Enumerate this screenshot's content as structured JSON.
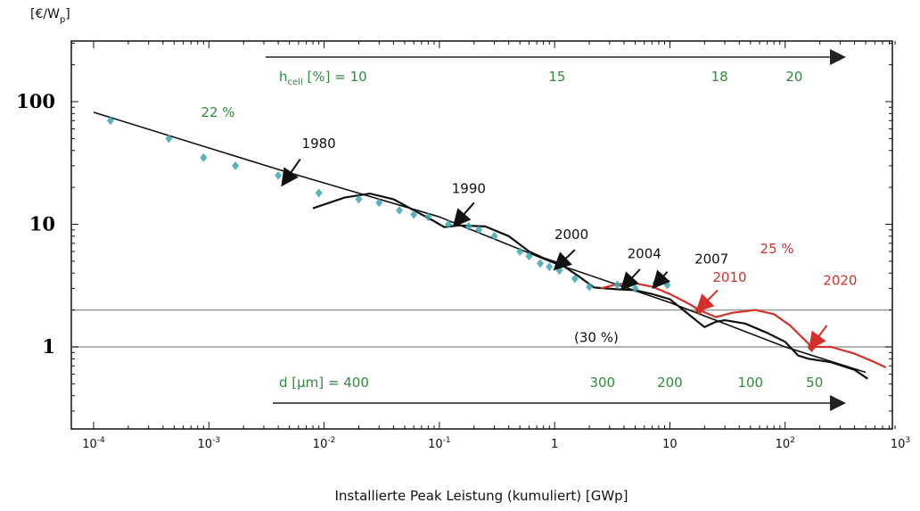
{
  "chart_data": {
    "type": "line",
    "ylabel_unit": "[€/W",
    "ylabel_unit_sub": "p",
    "ylabel_unit_close": "]",
    "xlabel": "Installierte Peak Leistung (kumuliert) [GWp]",
    "x_scale": "log",
    "y_scale": "log",
    "xlim": [
      5e-05,
      1000
    ],
    "ylim": [
      0.3,
      300
    ],
    "x_ticks": [
      {
        "value": 0.0001,
        "base": "10",
        "exp": "-4"
      },
      {
        "value": 0.001,
        "base": "10",
        "exp": "-3"
      },
      {
        "value": 0.01,
        "base": "10",
        "exp": "-2"
      },
      {
        "value": 0.1,
        "base": "10",
        "exp": "-1"
      },
      {
        "value": 1,
        "base": "1",
        "exp": ""
      },
      {
        "value": 10,
        "base": "10",
        "exp": ""
      },
      {
        "value": 100,
        "base": "10",
        "exp": "2"
      },
      {
        "value": 1000,
        "base": "10",
        "exp": "3"
      }
    ],
    "y_ticks": [
      {
        "value": 100,
        "label": "100"
      },
      {
        "value": 10,
        "label": "10"
      },
      {
        "value": 1,
        "label": "1"
      }
    ],
    "reference_lines_y": [
      2,
      1
    ],
    "colors": {
      "data": "#3fa6b0",
      "trend": "#111111",
      "forecast": "#d3302a",
      "green": "#2f8a3c"
    },
    "series": [
      {
        "id": "trend",
        "color": "#111111",
        "points": [
          [
            0.0001,
            82
          ],
          [
            0.004,
            28
          ],
          [
            0.1,
            11.5
          ],
          [
            1,
            4.8
          ],
          [
            10,
            2.3
          ],
          [
            100,
            1.0
          ],
          [
            500,
            0.62
          ]
        ]
      },
      {
        "id": "history",
        "color": "#111111",
        "points": [
          [
            0.008,
            13.5
          ],
          [
            0.015,
            16.5
          ],
          [
            0.025,
            17.8
          ],
          [
            0.04,
            16
          ],
          [
            0.06,
            13
          ],
          [
            0.09,
            10.6
          ],
          [
            0.11,
            9.5
          ],
          [
            0.15,
            9.8
          ],
          [
            0.25,
            9.6
          ],
          [
            0.4,
            8.0
          ],
          [
            0.6,
            6.0
          ],
          [
            0.8,
            5.3
          ],
          [
            1.1,
            4.8
          ],
          [
            1.6,
            3.8
          ],
          [
            2.2,
            3.05
          ],
          [
            3.5,
            2.95
          ],
          [
            5,
            2.9
          ],
          [
            7,
            2.7
          ],
          [
            10,
            2.45
          ],
          [
            15,
            1.8
          ],
          [
            20,
            1.45
          ],
          [
            25,
            1.6
          ],
          [
            30,
            1.65
          ],
          [
            45,
            1.55
          ],
          [
            70,
            1.3
          ],
          [
            100,
            1.1
          ],
          [
            130,
            0.85
          ],
          [
            160,
            0.8
          ],
          [
            250,
            0.75
          ],
          [
            400,
            0.65
          ],
          [
            520,
            0.55
          ]
        ]
      },
      {
        "id": "forecast",
        "color": "#d3302a",
        "points": [
          [
            2.5,
            3.0
          ],
          [
            3.5,
            3.25
          ],
          [
            5,
            3.3
          ],
          [
            7,
            3.1
          ],
          [
            10,
            2.7
          ],
          [
            14,
            2.3
          ],
          [
            18,
            2.0
          ],
          [
            25,
            1.75
          ],
          [
            35,
            1.9
          ],
          [
            55,
            2.0
          ],
          [
            80,
            1.85
          ],
          [
            110,
            1.5
          ],
          [
            140,
            1.2
          ],
          [
            170,
            1.0
          ],
          [
            250,
            1.0
          ],
          [
            400,
            0.88
          ],
          [
            600,
            0.75
          ],
          [
            750,
            0.68
          ]
        ]
      }
    ],
    "scatter": [
      [
        0.00014,
        70
      ],
      [
        0.00045,
        50
      ],
      [
        0.0009,
        35
      ],
      [
        0.0017,
        30
      ],
      [
        0.004,
        25
      ],
      [
        0.009,
        18
      ],
      [
        0.02,
        16
      ],
      [
        0.03,
        15
      ],
      [
        0.045,
        13
      ],
      [
        0.06,
        12
      ],
      [
        0.08,
        11.5
      ],
      [
        0.12,
        10
      ],
      [
        0.18,
        9.6
      ],
      [
        0.22,
        9
      ],
      [
        0.3,
        8
      ],
      [
        0.5,
        6
      ],
      [
        0.6,
        5.5
      ],
      [
        0.75,
        4.8
      ],
      [
        0.9,
        4.5
      ],
      [
        1.1,
        4.2
      ],
      [
        1.5,
        3.6
      ],
      [
        2,
        3.1
      ],
      [
        3.5,
        3.2
      ],
      [
        5,
        3.0
      ],
      [
        7.5,
        3.3
      ],
      [
        9.5,
        3.2
      ]
    ],
    "markers_red": [
      [
        18,
        2.0
      ],
      [
        170,
        1.0
      ]
    ],
    "arrows": [
      {
        "label": "1980",
        "from": [
          0.0062,
          34
        ],
        "to": [
          0.0045,
          22
        ],
        "color": "#111111"
      },
      {
        "label": "1990",
        "from": [
          0.2,
          15
        ],
        "to": [
          0.14,
          10.2
        ],
        "color": "#111111"
      },
      {
        "label": "2000",
        "from": [
          1.5,
          6.2
        ],
        "to": [
          1.05,
          4.5
        ],
        "color": "#111111"
      },
      {
        "label": "2004",
        "from": [
          5.5,
          4.3
        ],
        "to": [
          4.0,
          3.1
        ],
        "color": "#111111"
      },
      {
        "label": "2007",
        "from": [
          9.5,
          4.1
        ],
        "to": [
          7.5,
          3.2
        ],
        "color": "#111111"
      },
      {
        "label": "2010",
        "from": [
          26,
          2.9
        ],
        "to": [
          18,
          2.05
        ],
        "color": "#d3302a"
      },
      {
        "label": "2020",
        "from": [
          230,
          1.5
        ],
        "to": [
          170,
          1.02
        ],
        "color": "#d3302a"
      }
    ],
    "arrow_labels": [
      {
        "text": "1980",
        "x": 0.009,
        "y": 42,
        "color": "black"
      },
      {
        "text": "1990",
        "x": 0.18,
        "y": 18,
        "color": "black"
      },
      {
        "text": "2000",
        "x": 1.4,
        "y": 7.6,
        "color": "black"
      },
      {
        "text": "2004",
        "x": 6.0,
        "y": 5.3,
        "color": "black"
      },
      {
        "text": "2007",
        "x": 23,
        "y": 4.8,
        "color": "black"
      },
      {
        "text": "2010",
        "x": 33,
        "y": 3.4,
        "color": "red"
      },
      {
        "text": "2020",
        "x": 300,
        "y": 3.2,
        "color": "red"
      },
      {
        "text": "25 %",
        "x": 85,
        "y": 5.8,
        "color": "red"
      },
      {
        "text": "22 %",
        "x": 0.0012,
        "y": 75,
        "color": "green"
      },
      {
        "text": "(30 %)",
        "x": 2.3,
        "y": 1.1,
        "color": "black"
      }
    ],
    "efficiency_label_main": "h",
    "efficiency_label_sub": "cell",
    "efficiency_label_rest": " [%] = 10",
    "efficiency_values": [
      {
        "text": "15",
        "x": 1.05
      },
      {
        "text": "18",
        "x": 27
      },
      {
        "text": "20",
        "x": 120
      }
    ],
    "thickness_label": "d [µm] = 400",
    "thickness_values": [
      {
        "text": "300",
        "x": 2.6
      },
      {
        "text": "200",
        "x": 10
      },
      {
        "text": "100",
        "x": 50
      },
      {
        "text": "50",
        "x": 180
      }
    ]
  }
}
